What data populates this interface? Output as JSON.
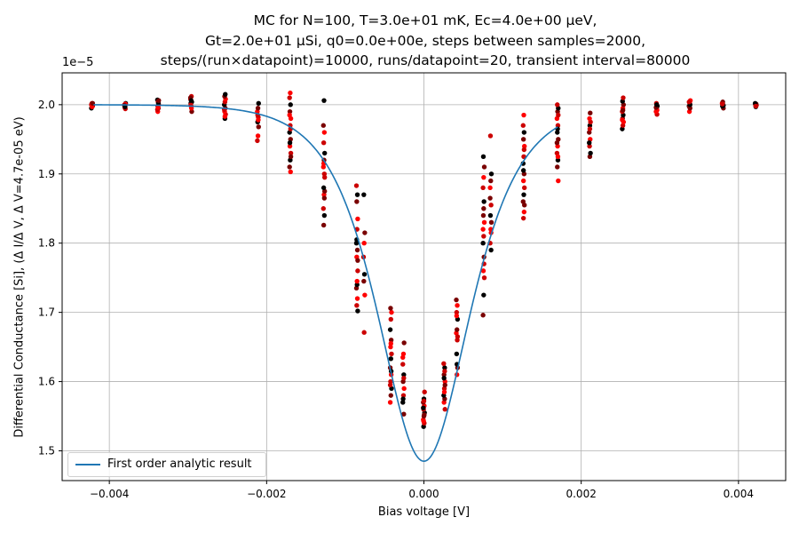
{
  "title": {
    "line1": "MC for N=100, T=3.0e+01 mK, Ec=4.0e+00 μeV,",
    "line2": "Gt=2.0e+01 μSi, q0=0.0e+00e, steps between samples=2000,",
    "line3": "steps/(run×datapoint)=10000, runs/datapoint=20, transient interval=80000"
  },
  "chart_data": {
    "type": "scatter",
    "xlabel": "Bias voltage [V]",
    "ylabel": "Differential Conductance [Si], (Δ I/Δ V, Δ V=4.7e-05 eV)",
    "y_scale_label": "1e−5",
    "xlim": [
      -0.0046,
      0.0046
    ],
    "ylim": [
      1.457,
      2.046
    ],
    "y_unit_multiplier": 1e-05,
    "grid": true,
    "legend_position": "lower-left",
    "x_ticks": [
      {
        "v": -0.004,
        "label": "−0.004"
      },
      {
        "v": -0.002,
        "label": "−0.002"
      },
      {
        "v": 0.0,
        "label": "0.000"
      },
      {
        "v": 0.002,
        "label": "0.002"
      },
      {
        "v": 0.004,
        "label": "0.004"
      }
    ],
    "y_ticks": [
      {
        "v": 1.5,
        "label": "1.5"
      },
      {
        "v": 1.6,
        "label": "1.6"
      },
      {
        "v": 1.7,
        "label": "1.7"
      },
      {
        "v": 1.8,
        "label": "1.8"
      },
      {
        "v": 1.9,
        "label": "1.9"
      },
      {
        "v": 2.0,
        "label": "2.0"
      }
    ],
    "analytic_curve": {
      "name": "First order analytic result",
      "color": "#1f77b4",
      "x_range": [
        -0.0042,
        0.0017
      ],
      "minimum": 1.485,
      "plateau": 2.0,
      "description_points": [
        [
          -0.0042,
          2.0
        ],
        [
          -0.003,
          2.0
        ],
        [
          -0.002,
          1.99
        ],
        [
          -0.0015,
          1.965
        ],
        [
          -0.0012,
          1.925
        ],
        [
          -0.001,
          1.88
        ],
        [
          -0.0008,
          1.81
        ],
        [
          -0.0006,
          1.73
        ],
        [
          -0.0004,
          1.64
        ],
        [
          -0.0002,
          1.53
        ],
        [
          0.0,
          1.485
        ],
        [
          0.0002,
          1.53
        ],
        [
          0.0004,
          1.64
        ],
        [
          0.0006,
          1.73
        ],
        [
          0.0008,
          1.81
        ],
        [
          0.001,
          1.88
        ],
        [
          0.0012,
          1.925
        ],
        [
          0.0015,
          1.96
        ],
        [
          0.0017,
          1.98
        ]
      ]
    },
    "point_colors": [
      "#000000",
      "#cc0000",
      "#ff0000",
      "#7a0000"
    ],
    "samples": [
      {
        "x": -0.00422,
        "y": [
          1.995,
          2.002,
          1.998,
          2.001,
          1.999,
          2.0,
          1.997,
          2.002
        ]
      },
      {
        "x": -0.0038,
        "y": [
          1.994,
          2.0,
          1.998,
          2.002,
          1.996,
          2.001,
          1.999,
          1.997
        ]
      },
      {
        "x": -0.00338,
        "y": [
          1.99,
          1.995,
          2.007,
          2.004,
          2.0,
          1.998,
          2.002,
          1.993,
          1.996,
          2.006
        ]
      },
      {
        "x": -0.00296,
        "y": [
          1.99,
          2.002,
          2.012,
          2.008,
          1.998,
          2.004,
          2.0,
          1.995,
          2.01,
          2.006
        ]
      },
      {
        "x": -0.00253,
        "y": [
          1.98,
          1.986,
          1.99,
          1.995,
          2.0,
          2.004,
          2.008,
          2.012,
          2.015,
          1.993,
          1.983
        ]
      },
      {
        "x": -0.00211,
        "y": [
          1.948,
          1.955,
          1.968,
          1.975,
          1.982,
          1.99,
          1.995,
          2.002,
          1.985,
          1.978
        ]
      },
      {
        "x": -0.0017,
        "y": [
          1.903,
          1.91,
          1.92,
          1.93,
          1.94,
          1.95,
          1.96,
          1.97,
          1.98,
          1.99,
          2.0,
          2.01,
          2.017,
          1.925,
          1.945,
          1.965,
          1.985
        ]
      },
      {
        "x": -0.00127,
        "y": [
          1.826,
          1.84,
          1.85,
          1.87,
          1.875,
          1.88,
          1.9,
          1.91,
          1.92,
          1.93,
          1.945,
          1.96,
          1.97,
          2.006,
          1.895,
          1.915,
          1.865
        ]
      },
      {
        "x": -0.00085,
        "y": [
          1.702,
          1.71,
          1.72,
          1.735,
          1.74,
          1.76,
          1.78,
          1.79,
          1.8,
          1.82,
          1.835,
          1.86,
          1.87,
          1.883,
          1.745,
          1.775,
          1.805
        ]
      },
      {
        "x": -0.00076,
        "y": [
          1.671,
          1.725,
          1.745,
          1.755,
          1.78,
          1.8,
          1.815,
          1.87
        ]
      },
      {
        "x": -0.00042,
        "y": [
          1.57,
          1.58,
          1.59,
          1.6,
          1.61,
          1.62,
          1.633,
          1.64,
          1.65,
          1.66,
          1.675,
          1.69,
          1.7,
          1.706,
          1.615,
          1.595,
          1.655
        ]
      },
      {
        "x": -0.00026,
        "y": [
          1.553,
          1.57,
          1.58,
          1.59,
          1.6,
          1.61,
          1.625,
          1.64,
          1.656,
          1.575,
          1.605,
          1.635
        ]
      },
      {
        "x": 0.0,
        "y": [
          1.535,
          1.54,
          1.545,
          1.55,
          1.555,
          1.56,
          1.565,
          1.57,
          1.575,
          1.585,
          1.543,
          1.552,
          1.562,
          1.572
        ]
      },
      {
        "x": 0.00026,
        "y": [
          1.56,
          1.57,
          1.575,
          1.58,
          1.59,
          1.6,
          1.61,
          1.62,
          1.626,
          1.585,
          1.595,
          1.605,
          1.615
        ]
      },
      {
        "x": 0.00042,
        "y": [
          1.61,
          1.62,
          1.64,
          1.66,
          1.67,
          1.675,
          1.69,
          1.7,
          1.71,
          1.718,
          1.625,
          1.665,
          1.695
        ]
      },
      {
        "x": 0.00076,
        "y": [
          1.696,
          1.725,
          1.75,
          1.76,
          1.78,
          1.8,
          1.81,
          1.83,
          1.84,
          1.86,
          1.88,
          1.895,
          1.91,
          1.925,
          1.77,
          1.82,
          1.85
        ]
      },
      {
        "x": 0.00085,
        "y": [
          1.79,
          1.8,
          1.82,
          1.83,
          1.84,
          1.855,
          1.88,
          1.89,
          1.9,
          1.955,
          1.815,
          1.865
        ]
      },
      {
        "x": 0.00127,
        "y": [
          1.836,
          1.845,
          1.86,
          1.87,
          1.88,
          1.89,
          1.9,
          1.915,
          1.925,
          1.94,
          1.95,
          1.96,
          1.97,
          1.985,
          1.855,
          1.905,
          1.935
        ]
      },
      {
        "x": 0.0017,
        "y": [
          1.89,
          1.91,
          1.92,
          1.93,
          1.94,
          1.95,
          1.96,
          1.97,
          1.98,
          1.99,
          1.995,
          2.0,
          1.925,
          1.945,
          1.965,
          1.985
        ]
      },
      {
        "x": 0.00211,
        "y": [
          1.925,
          1.93,
          1.94,
          1.95,
          1.96,
          1.97,
          1.975,
          1.98,
          1.988,
          1.945,
          1.965
        ]
      },
      {
        "x": 0.00253,
        "y": [
          1.965,
          1.97,
          1.975,
          1.98,
          1.985,
          1.99,
          1.995,
          2.0,
          2.005,
          2.01,
          1.978,
          1.992
        ]
      },
      {
        "x": 0.00296,
        "y": [
          1.986,
          1.99,
          1.994,
          1.998,
          2.002,
          1.992,
          1.996,
          2.0
        ]
      },
      {
        "x": 0.00338,
        "y": [
          1.99,
          1.995,
          1.998,
          2.002,
          2.006,
          1.997,
          2.0,
          2.004
        ]
      },
      {
        "x": 0.0038,
        "y": [
          1.995,
          1.998,
          2.0,
          2.002,
          2.004,
          1.999,
          2.001
        ]
      },
      {
        "x": 0.00422,
        "y": [
          1.997,
          1.999,
          2.0,
          2.001,
          2.002,
          1.998
        ]
      }
    ]
  }
}
